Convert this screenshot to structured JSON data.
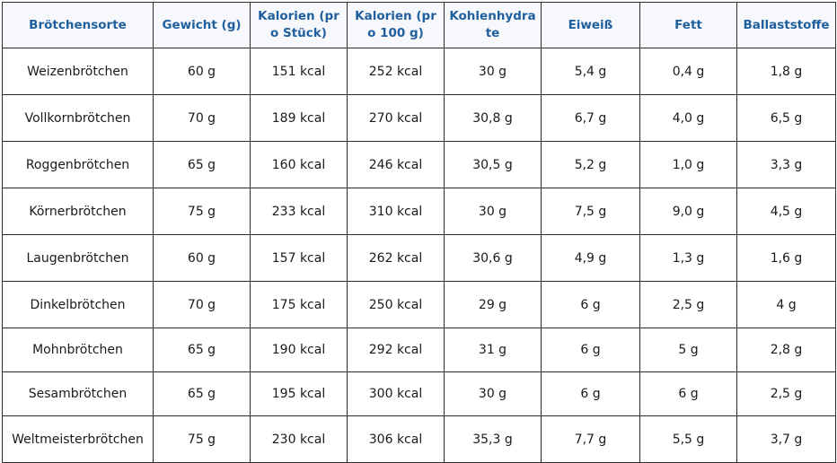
{
  "table": {
    "headers": [
      "Brötchensorte",
      "Gewicht (g)",
      "Kalorien (pro Stück)",
      "Kalorien (pro 100 g)",
      "Kohlenhydrate",
      "Eiweiß",
      "Fett",
      "Ballaststoffe"
    ],
    "rows": [
      [
        "Weizenbrötchen",
        "60 g",
        "151 kcal",
        "252 kcal",
        "30 g",
        "5,4 g",
        "0,4 g",
        "1,8 g"
      ],
      [
        "Vollkornbrötchen",
        "70 g",
        "189 kcal",
        "270 kcal",
        "30,8 g",
        "6,7 g",
        "4,0 g",
        "6,5 g"
      ],
      [
        "Roggenbrötchen",
        "65 g",
        "160 kcal",
        "246 kcal",
        "30,5 g",
        "5,2 g",
        "1,0 g",
        "3,3 g"
      ],
      [
        "Körnerbrötchen",
        "75 g",
        "233 kcal",
        "310 kcal",
        "30 g",
        "7,5 g",
        "9,0 g",
        "4,5 g"
      ],
      [
        "Laugenbrötchen",
        "60 g",
        "157 kcal",
        "262 kcal",
        "30,6 g",
        "4,9 g",
        "1,3 g",
        "1,6 g"
      ],
      [
        "Dinkelbrötchen",
        "70 g",
        "175 kcal",
        "250 kcal",
        "29 g",
        "6 g",
        "2,5 g",
        "4 g"
      ],
      [
        "Mohnbrötchen",
        "65 g",
        "190 kcal",
        "292 kcal",
        "31 g",
        "6 g",
        "5 g",
        "2,8 g"
      ],
      [
        "Sesambrötchen",
        "65 g",
        "195 kcal",
        "300 kcal",
        "30 g",
        "6 g",
        "6 g",
        "2,5 g"
      ],
      [
        "Weltmeisterbrötchen",
        "75 g",
        "230 kcal",
        "306 kcal",
        "35,3 g",
        "7,7 g",
        "5,5 g",
        "3,7 g"
      ]
    ]
  },
  "colors": {
    "header_text": "#1f5f9e",
    "header_background": "#f6f8fb",
    "body_text": "#1a1a1a",
    "border": "#2b2b2b"
  }
}
